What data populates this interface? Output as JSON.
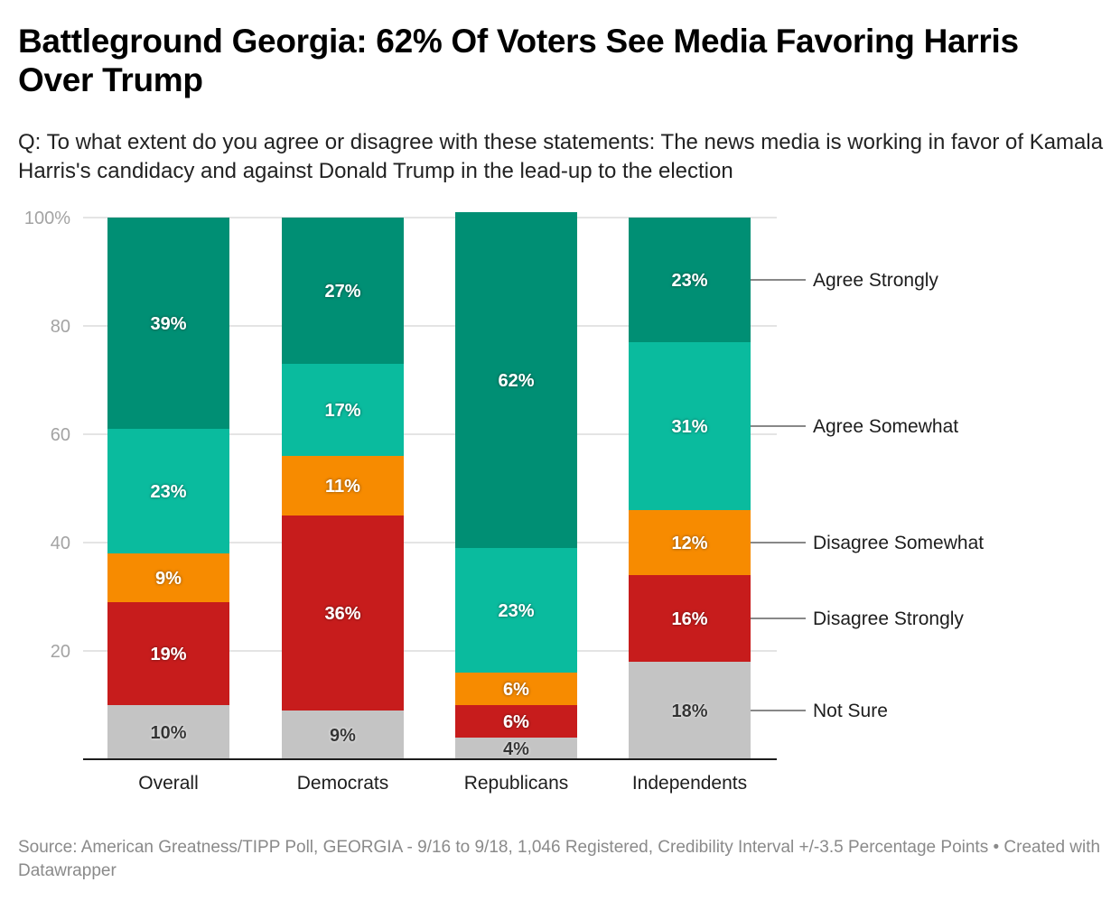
{
  "header": {
    "title": "Battleground Georgia: 62% Of Voters See Media Favoring Harris Over Trump",
    "subtitle": "Q: To what extent do you agree or disagree with these statements: The news media is working in favor of Kamala Harris's candidacy and against Donald Trump in the lead-up to the election"
  },
  "footer": {
    "source": "Source: American Greatness/TIPP Poll, GEORGIA - 9/16 to 9/18, 1,046 Registered, Credibility Interval +/-3.5 Percentage Points • Created with Datawrapper"
  },
  "chart_data": {
    "type": "bar",
    "stacked": true,
    "orientation": "vertical",
    "title": "Battleground Georgia: 62% Of Voters See Media Favoring Harris Over Trump",
    "xlabel": "",
    "ylabel": "",
    "ylim": [
      0,
      100
    ],
    "yticks": [
      20,
      40,
      60,
      80,
      100
    ],
    "ytick_labels": [
      "20",
      "40",
      "60",
      "80",
      "100%"
    ],
    "grid": true,
    "legend_placement": "right (direct labels)",
    "categories": [
      "Overall",
      "Democrats",
      "Republicans",
      "Independents"
    ],
    "series": [
      {
        "name": "Not Sure",
        "color": "#c4c4c4",
        "label_color": "#333333",
        "values": [
          10,
          9,
          4,
          18
        ]
      },
      {
        "name": "Disagree Strongly",
        "color": "#c71c1c",
        "label_color": "#ffffff",
        "values": [
          19,
          36,
          6,
          16
        ]
      },
      {
        "name": "Disagree Somewhat",
        "color": "#f78b00",
        "label_color": "#ffffff",
        "values": [
          9,
          11,
          6,
          12
        ]
      },
      {
        "name": "Agree Somewhat",
        "color": "#0abb9e",
        "label_color": "#ffffff",
        "values": [
          23,
          17,
          23,
          31
        ]
      },
      {
        "name": "Agree Strongly",
        "color": "#008f74",
        "label_color": "#ffffff",
        "values": [
          39,
          27,
          62,
          23
        ]
      }
    ],
    "value_suffix": "%"
  }
}
